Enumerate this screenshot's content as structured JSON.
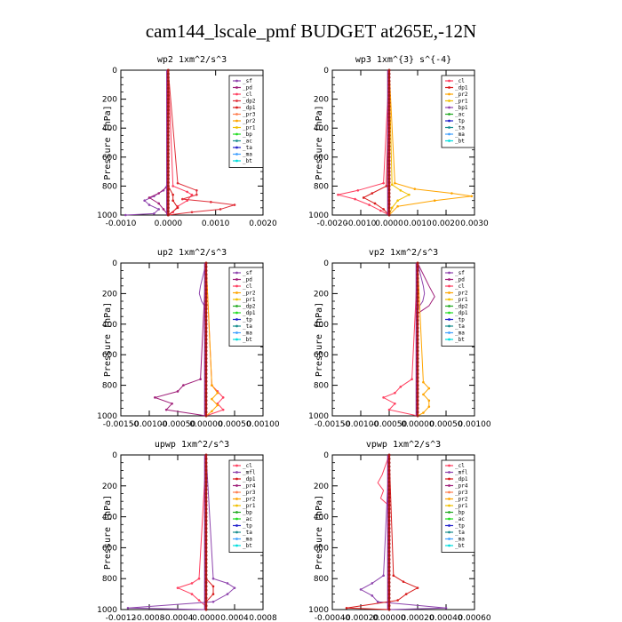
{
  "title": "cam144_lscale_pmf  BUDGET at265E,-12N",
  "chart_data": [
    {
      "type": "line",
      "title": "wp2  1xm^2/s^3",
      "ylabel": "Pressure [hPa]",
      "xlim": [
        -0.001,
        0.002
      ],
      "ylim": [
        1000,
        0
      ],
      "xticks": [
        "-0.0010",
        "0.0000",
        "0.0010",
        "0.0020"
      ],
      "yticks": [
        "0",
        "200",
        "400",
        "600",
        "800",
        "1000"
      ],
      "legend": [
        "_sf",
        "_pd",
        "_cl",
        "_dp2",
        "_dp1",
        "_pr3",
        "_pr2",
        "_pr1",
        "_bp",
        "_ac",
        "_ta",
        "_ma",
        "_bt"
      ],
      "colors": [
        "#8e44ad",
        "#a0207a",
        "#ff4060",
        "#e0303a",
        "#d81b1b",
        "#ff7f50",
        "#ffa500",
        "#f0c000",
        "#22dd22",
        "#1a8f8f",
        "#2222cc",
        "#40a0ff",
        "#00dddd"
      ],
      "series": [
        {
          "p": [
            0,
            780,
            830,
            870,
            900,
            930,
            960,
            990,
            1000
          ],
          "x": [
            0,
            0,
            -0.0001,
            -0.0003,
            -0.0005,
            -0.0004,
            -0.0002,
            -0.0003,
            -0.0009
          ]
        },
        {
          "p": [
            0,
            800,
            850,
            880,
            920,
            960,
            1000
          ],
          "x": [
            0,
            0,
            -0.0002,
            -0.0004,
            -0.0002,
            -0.0001,
            0
          ]
        },
        {
          "p": [
            0,
            800,
            840,
            860,
            900,
            940,
            980,
            1000
          ],
          "x": [
            0,
            0.0001,
            0.0004,
            0.0005,
            0.0004,
            0.0002,
            0.0001,
            0
          ]
        },
        {
          "p": [
            0,
            780,
            830,
            860,
            890,
            910,
            930,
            960,
            980,
            1000
          ],
          "x": [
            0,
            0.0002,
            0.0006,
            0.0006,
            0.0003,
            0.0009,
            0.0014,
            0.0011,
            0.0005,
            0
          ]
        },
        {
          "p": [
            0,
            800,
            860,
            900,
            950,
            1000
          ],
          "x": [
            0,
            0,
            0.0001,
            0.0001,
            0.0002,
            0
          ]
        },
        {
          "p": [
            0,
            1000
          ],
          "x": [
            0,
            0
          ]
        }
      ]
    },
    {
      "type": "line",
      "title": "wp3  1xm^{3} s^{-4}",
      "ylabel": "Pressure [hPa]",
      "xlim": [
        -0.002,
        0.003
      ],
      "ylim": [
        1000,
        0
      ],
      "xticks": [
        "-0.0020",
        "-0.0010",
        "0.0000",
        "0.0010",
        "0.0020",
        "0.0030"
      ],
      "yticks": [
        "0",
        "200",
        "400",
        "600",
        "800",
        "1000"
      ],
      "legend": [
        "_cl",
        "_dp1",
        "_pr2",
        "_pr1",
        "_bp1",
        "_ac",
        "_tp",
        "_ta",
        "_ma",
        "_bt"
      ],
      "colors": [
        "#ff4060",
        "#d81b1b",
        "#ffa500",
        "#f0c000",
        "#8e44ad",
        "#22aa22",
        "#2222cc",
        "#1a8f8f",
        "#40a0ff",
        "#00dddd"
      ],
      "series": [
        {
          "p": [
            0,
            780,
            830,
            860,
            890,
            930,
            970,
            1000
          ],
          "x": [
            0,
            -0.0002,
            -0.0011,
            -0.0018,
            -0.0012,
            -0.0007,
            -0.0003,
            0
          ]
        },
        {
          "p": [
            0,
            800,
            850,
            880,
            920,
            960,
            1000
          ],
          "x": [
            0,
            -0.0001,
            -0.0006,
            -0.0009,
            -0.0005,
            -0.0002,
            0
          ]
        },
        {
          "p": [
            0,
            780,
            820,
            850,
            870,
            900,
            940,
            1000
          ],
          "x": [
            0,
            0.0002,
            0.0009,
            0.0022,
            0.0029,
            0.0016,
            0.0003,
            0
          ]
        },
        {
          "p": [
            0,
            790,
            830,
            860,
            900,
            950,
            1000
          ],
          "x": [
            0,
            0.0001,
            0.0004,
            0.0007,
            0.0003,
            0.0001,
            0
          ]
        },
        {
          "p": [
            0,
            1000
          ],
          "x": [
            0,
            0
          ]
        }
      ]
    },
    {
      "type": "line",
      "title": "up2  1xm^2/s^3",
      "ylabel": "Pressure [hPa]",
      "xlim": [
        -0.0015,
        0.001
      ],
      "ylim": [
        1000,
        0
      ],
      "xticks": [
        "-0.00150",
        "-0.00100",
        "-0.00050",
        "0.00000",
        "0.00050",
        "0.00100"
      ],
      "yticks": [
        "0",
        "200",
        "400",
        "600",
        "800",
        "1000"
      ],
      "legend": [
        "_sf",
        "_pd",
        "_cl",
        "_pr2",
        "_pr1",
        "_dp2",
        "_dp1",
        "_tp",
        "_ta",
        "_ma",
        "_bt"
      ],
      "colors": [
        "#8e44ad",
        "#a0207a",
        "#ff4060",
        "#ffa500",
        "#f0c000",
        "#22aa22",
        "#22dd22",
        "#2222cc",
        "#1a8f8f",
        "#40a0ff",
        "#00dddd"
      ],
      "series": [
        {
          "p": [
            0,
            150,
            200,
            250,
            300,
            1000
          ],
          "x": [
            0,
            -0.0001,
            -0.00012,
            -8e-05,
            0,
            0
          ]
        },
        {
          "p": [
            0,
            760,
            800,
            840,
            880,
            920,
            960,
            1000
          ],
          "x": [
            0,
            -0.0001,
            -0.0004,
            -0.0005,
            -0.0009,
            -0.0006,
            -0.0007,
            0
          ]
        },
        {
          "p": [
            0,
            800,
            840,
            880,
            920,
            960,
            1000
          ],
          "x": [
            0,
            0.0001,
            0.0002,
            0.0003,
            0.0002,
            0.0003,
            0
          ]
        },
        {
          "p": [
            0,
            800,
            850,
            890,
            930,
            970,
            1000
          ],
          "x": [
            0,
            0.0001,
            0.0002,
            0.0001,
            0.0002,
            0.0001,
            0
          ]
        },
        {
          "p": [
            0,
            1000
          ],
          "x": [
            0,
            0
          ]
        }
      ]
    },
    {
      "type": "line",
      "title": "vp2  1xm^2/s^3",
      "ylabel": "Pressure [hPa]",
      "xlim": [
        -0.0015,
        0.001
      ],
      "ylim": [
        1000,
        0
      ],
      "xticks": [
        "-0.00150",
        "-0.00100",
        "-0.00050",
        "0.00000",
        "0.00050",
        "0.00100"
      ],
      "yticks": [
        "0",
        "200",
        "400",
        "600",
        "800",
        "1000"
      ],
      "legend": [
        "_sf",
        "_pd",
        "_cl",
        "_pr2",
        "_pr1",
        "_dp2",
        "_dp1",
        "_tp",
        "_ta",
        "_ma",
        "_bt"
      ],
      "colors": [
        "#8e44ad",
        "#a0207a",
        "#ff4060",
        "#ffa500",
        "#f0c000",
        "#22aa22",
        "#22dd22",
        "#2222cc",
        "#1a8f8f",
        "#40a0ff",
        "#00dddd"
      ],
      "series": [
        {
          "p": [
            0,
            150,
            200,
            250,
            300,
            1000
          ],
          "x": [
            0,
            0.0001,
            0.00012,
            9e-05,
            0,
            0
          ]
        },
        {
          "p": [
            0,
            150,
            220,
            280,
            330,
            1000
          ],
          "x": [
            0,
            0.0002,
            0.0003,
            0.0002,
            0,
            0
          ]
        },
        {
          "p": [
            0,
            760,
            810,
            850,
            880,
            920,
            960,
            1000
          ],
          "x": [
            0,
            -0.0001,
            -0.0003,
            -0.0004,
            -0.0006,
            -0.0004,
            -0.0005,
            0
          ]
        },
        {
          "p": [
            0,
            780,
            820,
            860,
            900,
            940,
            980,
            1000
          ],
          "x": [
            0,
            0.0001,
            0.0002,
            0.0001,
            0.0002,
            0.0002,
            0.0001,
            0
          ]
        },
        {
          "p": [
            0,
            1000
          ],
          "x": [
            0,
            0
          ]
        }
      ]
    },
    {
      "type": "line",
      "title": "upwp  1xm^2/s^3",
      "ylabel": "Pressure [hPa]",
      "xlim": [
        -0.0012,
        0.0008
      ],
      "ylim": [
        1000,
        0
      ],
      "xticks": [
        "-0.0012",
        "-0.0008",
        "-0.0004",
        "0.0000",
        "0.0004",
        "0.0008"
      ],
      "yticks": [
        "0",
        "200",
        "400",
        "600",
        "800",
        "1000"
      ],
      "legend": [
        "_cl",
        "_mfl",
        "_dp1",
        "_pr4",
        "_pr3",
        "_pr2",
        "_pr1",
        "_bp",
        "_ac",
        "_tp",
        "_ta",
        "_ma",
        "_bt"
      ],
      "colors": [
        "#ff4060",
        "#8e44ad",
        "#d81b1b",
        "#a0207a",
        "#ff7f50",
        "#ffa500",
        "#f0c000",
        "#22aa22",
        "#22dd22",
        "#2222cc",
        "#1a8f8f",
        "#40a0ff",
        "#00dddd"
      ],
      "series": [
        {
          "p": [
            0,
            800,
            830,
            860,
            900,
            940,
            980,
            1000
          ],
          "x": [
            0,
            -0.0001,
            -0.0002,
            -0.0004,
            -0.0002,
            -0.0001,
            0,
            0
          ]
        },
        {
          "p": [
            0,
            800,
            830,
            860,
            900,
            950,
            990,
            1000
          ],
          "x": [
            0,
            0.0001,
            0.0003,
            0.0004,
            0.0003,
            0.0001,
            -0.0011,
            0
          ]
        },
        {
          "p": [
            0,
            800,
            850,
            900,
            950,
            1000
          ],
          "x": [
            0,
            0,
            0.0001,
            0.0001,
            0,
            0
          ]
        },
        {
          "p": [
            0,
            1000
          ],
          "x": [
            0,
            0
          ]
        }
      ]
    },
    {
      "type": "line",
      "title": "vpwp  1xm^2/s^3",
      "ylabel": "Pressure [hPa]",
      "xlim": [
        -0.0004,
        0.0006
      ],
      "ylim": [
        1000,
        0
      ],
      "xticks": [
        "-0.00040",
        "-0.00020",
        "0.00000",
        "0.00020",
        "0.00040",
        "0.00060"
      ],
      "yticks": [
        "0",
        "200",
        "400",
        "600",
        "800",
        "1000"
      ],
      "legend": [
        "_cl",
        "_mfl",
        "_dp1",
        "_pr4",
        "_pr3",
        "_pr2",
        "_pr1",
        "_bp",
        "_ac",
        "_tp",
        "_ta",
        "_ma",
        "_bt"
      ],
      "colors": [
        "#ff4060",
        "#8e44ad",
        "#d81b1b",
        "#a0207a",
        "#ff7f50",
        "#ffa500",
        "#f0c000",
        "#22aa22",
        "#22dd22",
        "#2222cc",
        "#1a8f8f",
        "#40a0ff",
        "#00dddd"
      ],
      "series": [
        {
          "p": [
            0,
            130,
            180,
            230,
            280,
            330,
            1000
          ],
          "x": [
            0,
            -5e-05,
            -8e-05,
            -4e-05,
            -6e-05,
            0,
            0
          ]
        },
        {
          "p": [
            0,
            780,
            830,
            870,
            910,
            950,
            990,
            1000
          ],
          "x": [
            0,
            -4e-05,
            -0.00012,
            -0.0002,
            -0.00012,
            -8e-05,
            0.0004,
            0
          ]
        },
        {
          "p": [
            0,
            780,
            820,
            860,
            900,
            940,
            990,
            1000
          ],
          "x": [
            0,
            3e-05,
            0.0001,
            0.0002,
            0.00012,
            6e-05,
            -0.0003,
            0
          ]
        },
        {
          "p": [
            0,
            1000
          ],
          "x": [
            0,
            0
          ]
        }
      ]
    }
  ]
}
